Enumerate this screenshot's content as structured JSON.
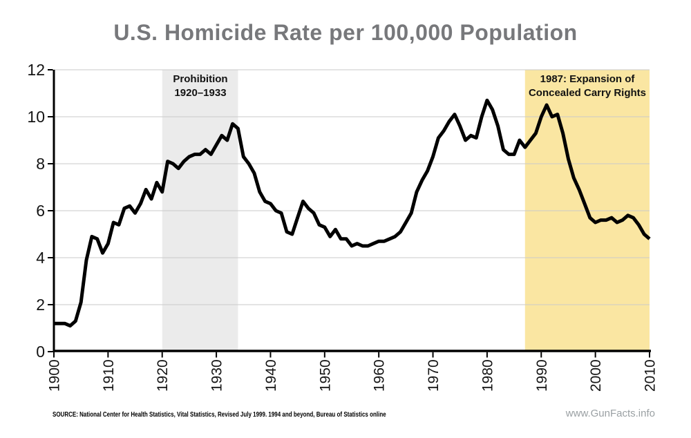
{
  "title": {
    "text": "U.S. Homicide Rate per 100,000 Population"
  },
  "footer": {
    "source": "SOURCE: National Center for Health Statistics, Vital Statistics, Revised July 1999. 1994 and beyond, Bureau of Statistics online",
    "watermark": "www.GunFacts.info"
  },
  "colors": {
    "title": "#77787b",
    "line": "#000000",
    "grid": "#c9c9c9",
    "axis": "#000000",
    "prohibition_band": "#ebebeb",
    "ccw_band": "#fae6a2",
    "watermark": "#9aa0a3"
  },
  "chart_data": {
    "type": "line",
    "title": "U.S. Homicide Rate per 100,000 Population",
    "series_name": "Homicide rate per 100,000 population",
    "xlim": [
      1900,
      2010
    ],
    "ylim": [
      0,
      12
    ],
    "x_ticks": [
      1900,
      1910,
      1920,
      1930,
      1940,
      1950,
      1960,
      1970,
      1980,
      1990,
      2000,
      2010
    ],
    "y_ticks": [
      0,
      2,
      4,
      6,
      8,
      10,
      12
    ],
    "grid": "horizontal",
    "years": [
      1900,
      1901,
      1902,
      1903,
      1904,
      1905,
      1906,
      1907,
      1908,
      1909,
      1910,
      1911,
      1912,
      1913,
      1914,
      1915,
      1916,
      1917,
      1918,
      1919,
      1920,
      1921,
      1922,
      1923,
      1924,
      1925,
      1926,
      1927,
      1928,
      1929,
      1930,
      1931,
      1932,
      1933,
      1934,
      1935,
      1936,
      1937,
      1938,
      1939,
      1940,
      1941,
      1942,
      1943,
      1944,
      1945,
      1946,
      1947,
      1948,
      1949,
      1950,
      1951,
      1952,
      1953,
      1954,
      1955,
      1956,
      1957,
      1958,
      1959,
      1960,
      1961,
      1962,
      1963,
      1964,
      1965,
      1966,
      1967,
      1968,
      1969,
      1970,
      1971,
      1972,
      1973,
      1974,
      1975,
      1976,
      1977,
      1978,
      1979,
      1980,
      1981,
      1982,
      1983,
      1984,
      1985,
      1986,
      1987,
      1988,
      1989,
      1990,
      1991,
      1992,
      1993,
      1994,
      1995,
      1996,
      1997,
      1998,
      1999,
      2000,
      2001,
      2002,
      2003,
      2004,
      2005,
      2006,
      2007,
      2008,
      2009,
      2010
    ],
    "values": [
      1.2,
      1.2,
      1.2,
      1.1,
      1.3,
      2.1,
      3.9,
      4.9,
      4.8,
      4.2,
      4.6,
      5.5,
      5.4,
      6.1,
      6.2,
      5.9,
      6.3,
      6.9,
      6.5,
      7.2,
      6.8,
      8.1,
      8.0,
      7.8,
      8.1,
      8.3,
      8.4,
      8.4,
      8.6,
      8.4,
      8.8,
      9.2,
      9.0,
      9.7,
      9.5,
      8.3,
      8.0,
      7.6,
      6.8,
      6.4,
      6.3,
      6.0,
      5.9,
      5.1,
      5.0,
      5.7,
      6.4,
      6.1,
      5.9,
      5.4,
      5.3,
      4.9,
      5.2,
      4.8,
      4.8,
      4.5,
      4.6,
      4.5,
      4.5,
      4.6,
      4.7,
      4.7,
      4.8,
      4.9,
      5.1,
      5.5,
      5.9,
      6.8,
      7.3,
      7.7,
      8.3,
      9.1,
      9.4,
      9.8,
      10.1,
      9.6,
      9.0,
      9.2,
      9.1,
      10.0,
      10.7,
      10.3,
      9.6,
      8.6,
      8.4,
      8.4,
      9.0,
      8.7,
      9.0,
      9.3,
      10.0,
      10.5,
      10.0,
      10.1,
      9.3,
      8.2,
      7.4,
      6.9,
      6.3,
      5.7,
      5.5,
      5.6,
      5.6,
      5.7,
      5.5,
      5.6,
      5.8,
      5.7,
      5.4,
      5.0,
      4.8
    ],
    "annotations": [
      {
        "name": "prohibition-era",
        "label": "Prohibition\n1920–1933",
        "x_start_year": 1920,
        "x_end_year": 1934,
        "fill": "#ebebeb"
      },
      {
        "name": "concealed-carry",
        "label": "1987: Expansion of\nConcealed Carry Rights",
        "x_start_year": 1987,
        "x_end_year": 2010,
        "fill": "#fae6a2"
      }
    ]
  }
}
